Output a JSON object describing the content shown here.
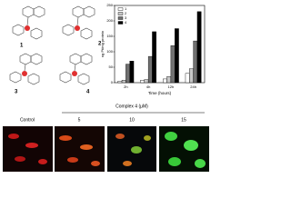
{
  "chart_data": {
    "type": "bar",
    "y_label": "ng Pt/mg protein",
    "x_label": "Time (hours)",
    "categories": [
      "2h",
      "4h",
      "12h",
      "24h"
    ],
    "series": [
      {
        "name": "1",
        "color": "#ffffff",
        "values": [
          5,
          8,
          12,
          30
        ]
      },
      {
        "name": "2",
        "color": "#c8c8c8",
        "values": [
          8,
          10,
          20,
          45
        ]
      },
      {
        "name": "3",
        "color": "#707070",
        "values": [
          60,
          85,
          120,
          135
        ]
      },
      {
        "name": "4",
        "color": "#000000",
        "values": [
          70,
          165,
          175,
          230
        ]
      }
    ],
    "ylim": [
      0,
      250
    ],
    "yticks": [
      0,
      50,
      100,
      150,
      200,
      250
    ],
    "legend": "top-left"
  },
  "structures": {
    "labels": [
      "1",
      "2",
      "3",
      "4"
    ]
  },
  "microscopy": {
    "group_label": "Complex 4 (μM)",
    "panels": [
      "Control",
      "5",
      "10",
      "15"
    ]
  }
}
